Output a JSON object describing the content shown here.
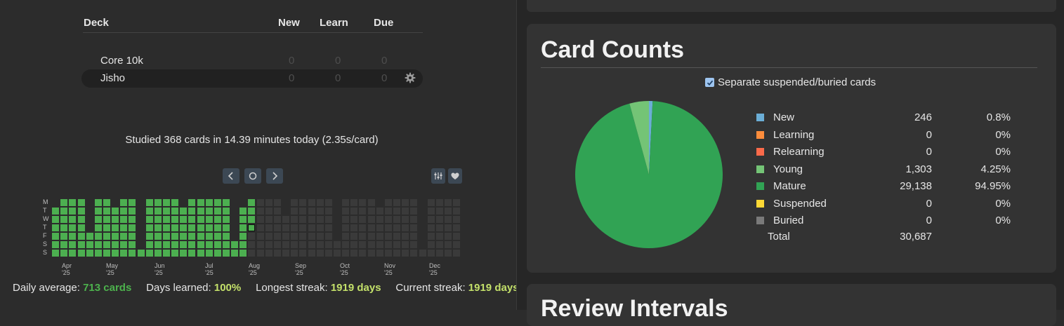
{
  "deck_list": {
    "headers": {
      "deck": "Deck",
      "new": "New",
      "learn": "Learn",
      "due": "Due"
    },
    "decks": [
      {
        "name": "Core 10k",
        "new": "0",
        "learn": "0",
        "due": "0"
      },
      {
        "name": "Jisho",
        "new": "0",
        "learn": "0",
        "due": "0"
      }
    ]
  },
  "studied_today": "Studied 368 cards in 14.39 minutes today (2.35s/card)",
  "heatmap": {
    "day_labels": [
      "M",
      "T",
      "W",
      "T",
      "F",
      "S",
      "S"
    ],
    "month_labels": [
      "Apr '25",
      "May '25",
      "Jun '25",
      "Jul '25",
      "Aug '25",
      "Sep '25",
      "Oct '25",
      "Nov '25",
      "Dec '25"
    ],
    "nav_icons": [
      "chevron-left-icon",
      "circle-icon",
      "chevron-right-icon",
      "sliders-icon",
      "heart-icon"
    ]
  },
  "stats": {
    "daily_average_label": "Daily average:",
    "daily_average_value": "713 cards",
    "days_learned_label": "Days learned:",
    "days_learned_value": "100%",
    "longest_streak_label": "Longest streak:",
    "longest_streak_value": "1919 days",
    "current_streak_label": "Current streak:",
    "current_streak_value": "1919 days"
  },
  "card_counts": {
    "title": "Card Counts",
    "checkbox_label": "Separate suspended/buried cards",
    "checkbox_checked": true,
    "legend": [
      {
        "label": "New",
        "count": "246",
        "pct": "0.8%",
        "color": "#6baed6"
      },
      {
        "label": "Learning",
        "count": "0",
        "pct": "0%",
        "color": "#fd8d3c"
      },
      {
        "label": "Relearning",
        "count": "0",
        "pct": "0%",
        "color": "#fb6a4a"
      },
      {
        "label": "Young",
        "count": "1,303",
        "pct": "4.25%",
        "color": "#74c476"
      },
      {
        "label": "Mature",
        "count": "29,138",
        "pct": "94.95%",
        "color": "#31a354"
      },
      {
        "label": "Suspended",
        "count": "0",
        "pct": "0%",
        "color": "#fdd835"
      },
      {
        "label": "Buried",
        "count": "0",
        "pct": "0%",
        "color": "#7a7a7a"
      }
    ],
    "total_label": "Total",
    "total_count": "30,687"
  },
  "chart_data": {
    "type": "pie",
    "categories": [
      "New",
      "Learning",
      "Relearning",
      "Young",
      "Mature",
      "Suspended",
      "Buried"
    ],
    "values": [
      246,
      0,
      0,
      1303,
      29138,
      0,
      0
    ]
  },
  "review_intervals": {
    "title": "Review Intervals"
  }
}
